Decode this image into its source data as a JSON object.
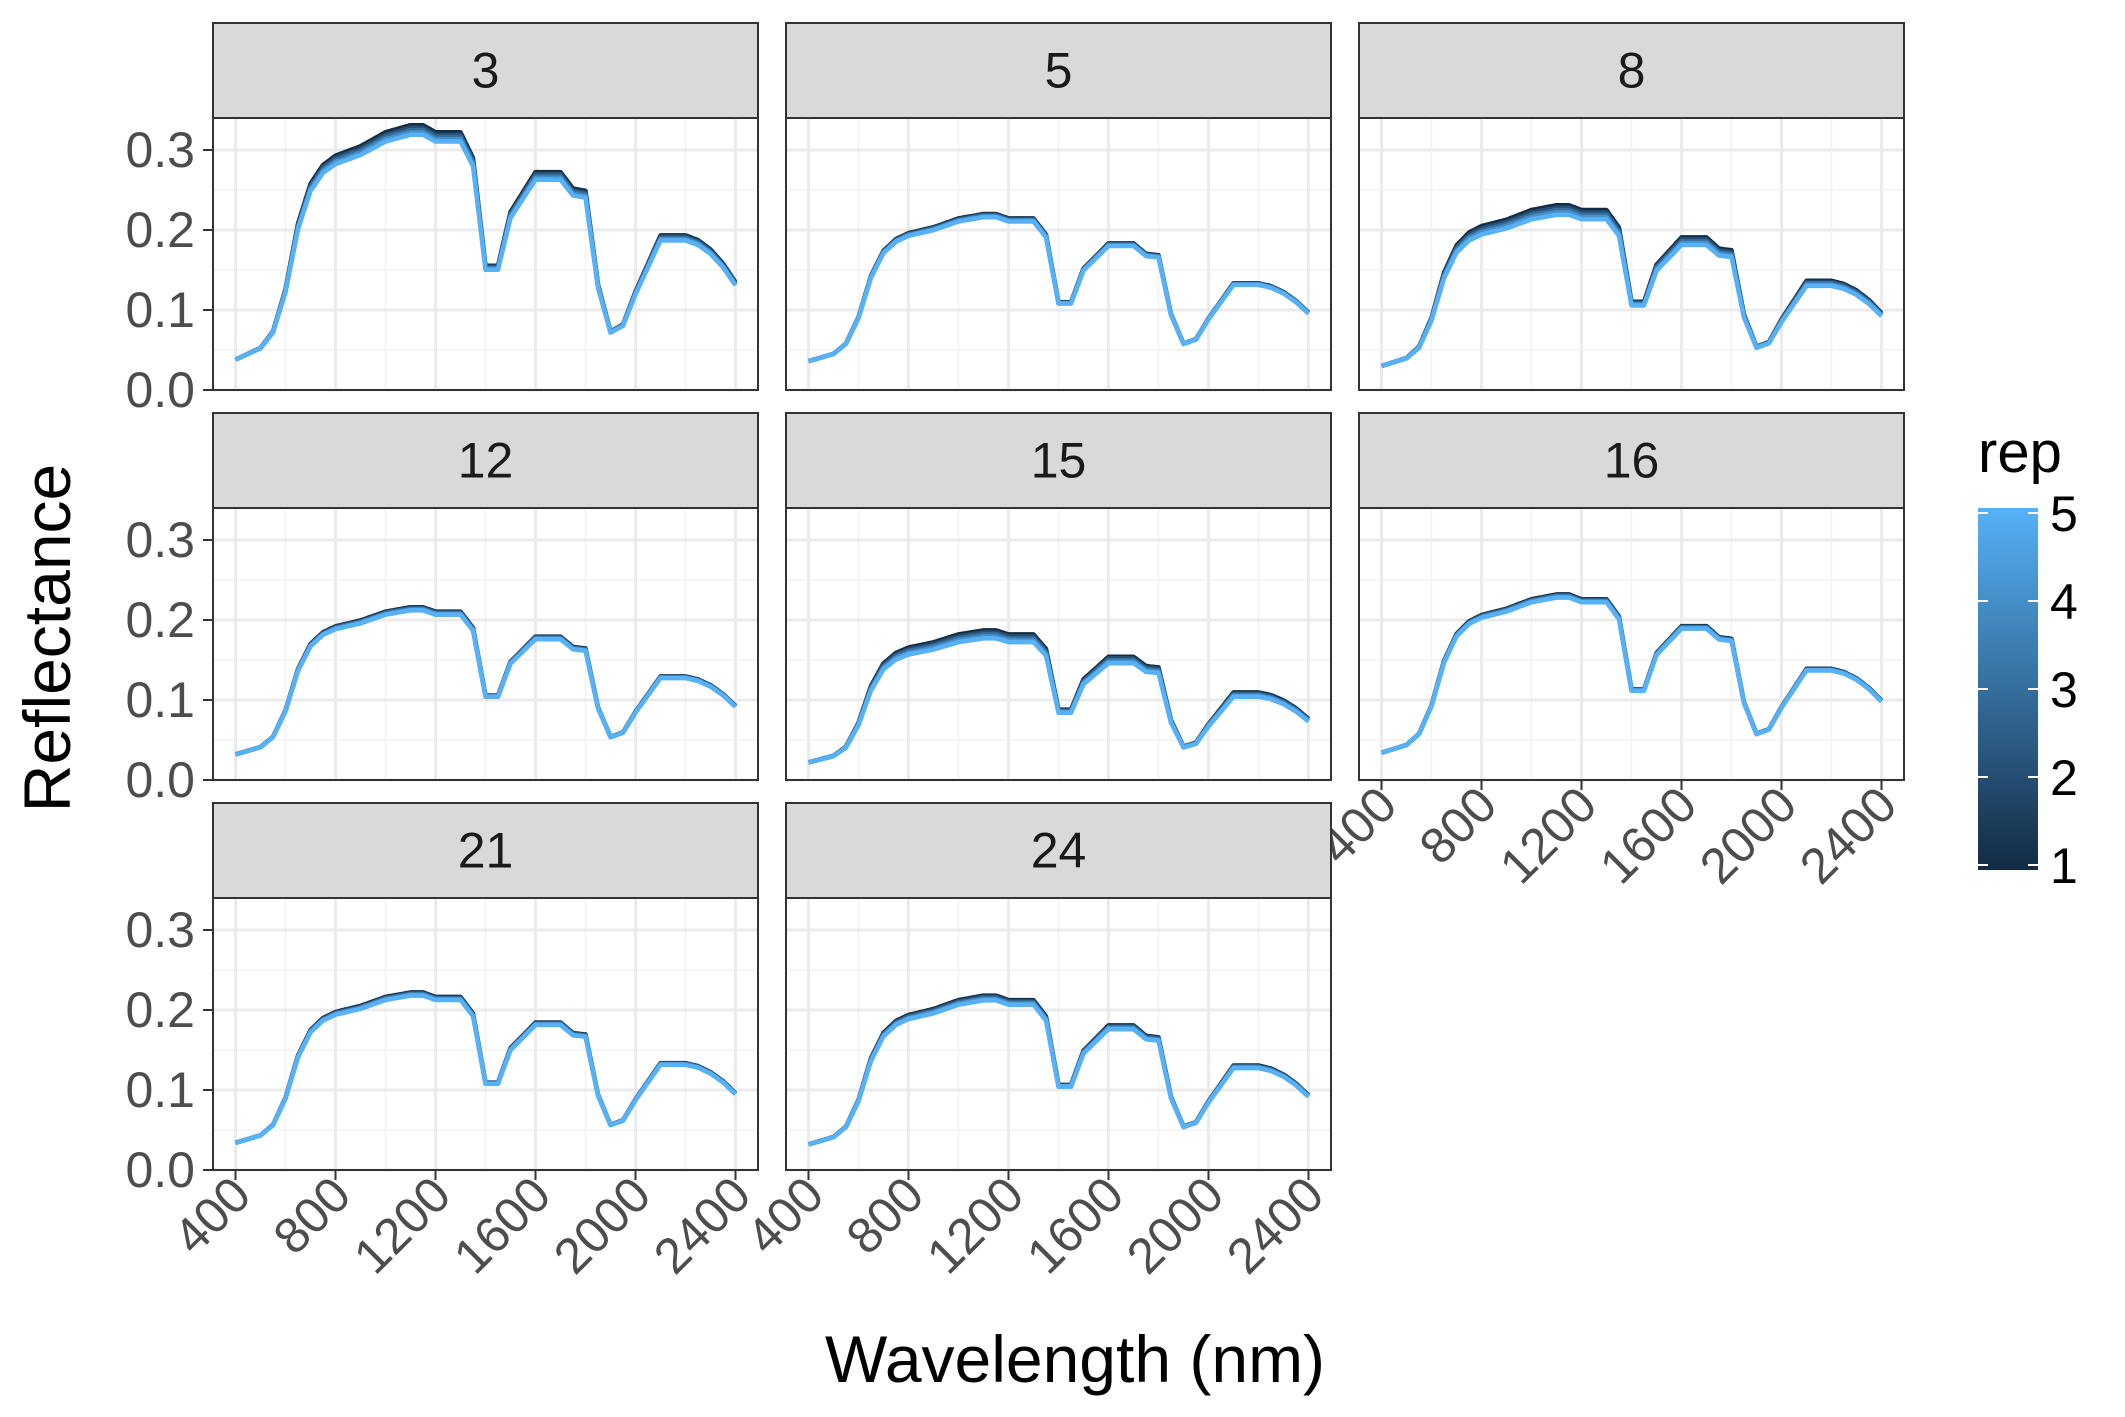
{
  "chart_data": {
    "type": "line",
    "facet_variable": "",
    "facets": [
      "3",
      "5",
      "8",
      "12",
      "15",
      "16",
      "21",
      "24"
    ],
    "xlabel": "Wavelength (nm)",
    "ylabel": "Reflectance",
    "x_ticks": [
      400,
      800,
      1200,
      1600,
      2000,
      2400
    ],
    "x_tick_labels": [
      "400",
      "800",
      "1200",
      "1600",
      "2000",
      "2400"
    ],
    "y_ticks": [
      0.0,
      0.1,
      0.2,
      0.3
    ],
    "y_tick_labels": [
      "0.0",
      "0.1",
      "0.2",
      "0.3"
    ],
    "xlim": [
      310,
      2490
    ],
    "ylim": [
      0,
      0.34
    ],
    "legend": {
      "title": "rep",
      "placement": "right",
      "ticks": [
        "1",
        "2",
        "3",
        "4",
        "5"
      ],
      "colors": [
        "#132b43",
        "#56b1f7"
      ]
    },
    "grid": true,
    "shape_x": [
      400,
      500,
      550,
      600,
      650,
      700,
      750,
      800,
      900,
      1000,
      1100,
      1150,
      1200,
      1300,
      1350,
      1400,
      1450,
      1500,
      1600,
      1700,
      1750,
      1800,
      1850,
      1900,
      1950,
      2000,
      2100,
      2200,
      2250,
      2300,
      2350,
      2400
    ],
    "shape_template": [
      0,
      0.05,
      0.12,
      0.3,
      0.58,
      0.75,
      0.83,
      0.87,
      0.91,
      0.97,
      1.0,
      1.0,
      0.97,
      0.97,
      0.86,
      0.4,
      0.4,
      0.63,
      0.8,
      0.8,
      0.73,
      0.72,
      0.32,
      0.12,
      0.15,
      0.29,
      0.53,
      0.53,
      0.51,
      0.47,
      0.41,
      0.33
    ],
    "panels": [
      {
        "label": "3",
        "base": 0.038,
        "peak": 0.325,
        "rep_spread": 0.006
      },
      {
        "label": "5",
        "base": 0.036,
        "peak": 0.218,
        "rep_spread": 0.002
      },
      {
        "label": "8",
        "base": 0.03,
        "peak": 0.225,
        "rep_spread": 0.006
      },
      {
        "label": "12",
        "base": 0.032,
        "peak": 0.214,
        "rep_spread": 0.002
      },
      {
        "label": "15",
        "base": 0.022,
        "peak": 0.182,
        "rep_spread": 0.005
      },
      {
        "label": "16",
        "base": 0.034,
        "peak": 0.23,
        "rep_spread": 0.002
      },
      {
        "label": "21",
        "base": 0.034,
        "peak": 0.22,
        "rep_spread": 0.002
      },
      {
        "label": "24",
        "base": 0.032,
        "peak": 0.215,
        "rep_spread": 0.003
      }
    ]
  }
}
